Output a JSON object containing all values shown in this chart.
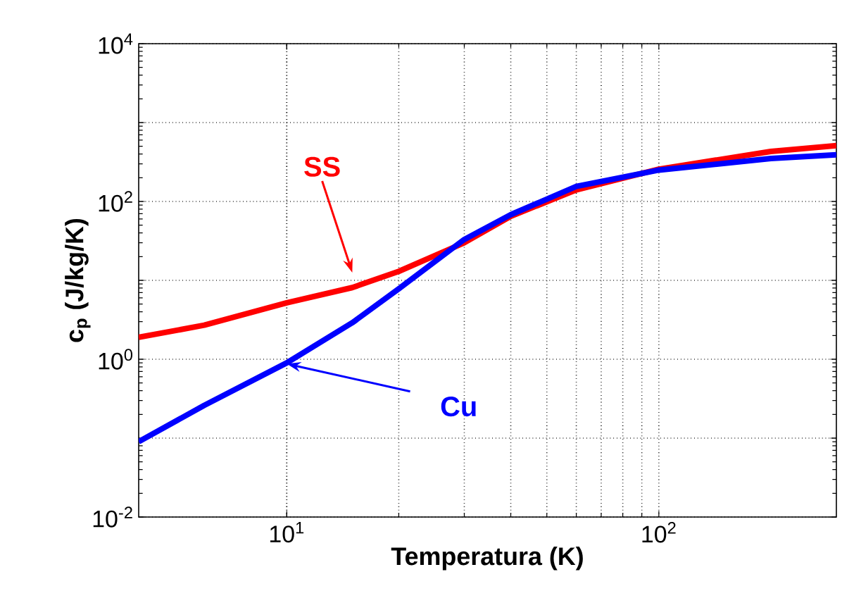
{
  "chart_data": {
    "type": "line",
    "xlabel": "Temperatura (K)",
    "ylabel": "**c$_{p}$ (J/kg/K)**",
    "log": "xy",
    "grid": true,
    "xlim": [
      4,
      300
    ],
    "ylim": [
      0.01,
      10000
    ],
    "xticks": [
      {
        "value": 10,
        "label": "10$^{1}$"
      },
      {
        "value": 100,
        "label": "10$^{2}$"
      }
    ],
    "yticks": [
      {
        "value": 0.01,
        "label": "10$^{-2}$"
      },
      {
        "value": 0.1,
        "label": null
      },
      {
        "value": 1,
        "label": "10$^{0}$"
      },
      {
        "value": 10,
        "label": null
      },
      {
        "value": 100,
        "label": "10$^{2}$"
      },
      {
        "value": 1000,
        "label": null
      },
      {
        "value": 10000,
        "label": "10$^{4}$"
      }
    ],
    "x": [
      4,
      6,
      10,
      15,
      20,
      30,
      40,
      60,
      100,
      200,
      300
    ],
    "series": [
      {
        "name": "SS",
        "color": "#ff0000",
        "values": [
          1.9,
          2.7,
          5.2,
          8.1,
          13,
          30,
          65,
          140,
          257,
          430,
          510
        ]
      },
      {
        "name": "Cu",
        "color": "#0000ff",
        "values": [
          0.09,
          0.26,
          0.9,
          2.9,
          7.8,
          33,
          68,
          155,
          250,
          350,
          390
        ]
      }
    ]
  }
}
